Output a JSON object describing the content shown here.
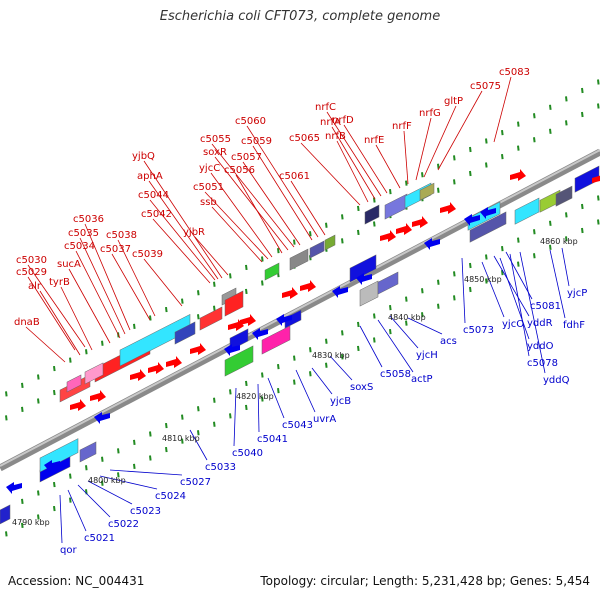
{
  "title": "Escherichia coli CFT073, complete genome",
  "footer": {
    "accession": "Accession: NC_004431",
    "summary": "Topology: circular; Length: 5,231,428 bp; Genes: 5,454"
  },
  "colors": {
    "forward_label": "#cc0000",
    "reverse_label": "#0000cc",
    "forward_gene": "#ff0000",
    "reverse_gene": "#0000ee",
    "backbone": "#999999",
    "tick": "#228b22"
  },
  "scale_labels": [
    "4790 kbp",
    "4800 kbp",
    "4810 kbp",
    "4820 kbp",
    "4830 kbp",
    "4840 kbp",
    "4850 kbp",
    "4860 kbp"
  ],
  "forward_genes": [
    {
      "name": "dnaB"
    },
    {
      "name": "alr"
    },
    {
      "name": "tyrB"
    },
    {
      "name": "c5029"
    },
    {
      "name": "c5030"
    },
    {
      "name": "sucA"
    },
    {
      "name": "c5034"
    },
    {
      "name": "c5035"
    },
    {
      "name": "c5036"
    },
    {
      "name": "c5037"
    },
    {
      "name": "c5038"
    },
    {
      "name": "c5039"
    },
    {
      "name": "c5042"
    },
    {
      "name": "c5044"
    },
    {
      "name": "aphA"
    },
    {
      "name": "yjbQ"
    },
    {
      "name": "yjbR"
    },
    {
      "name": "ssb"
    },
    {
      "name": "c5051"
    },
    {
      "name": "yjcC"
    },
    {
      "name": "c5056"
    },
    {
      "name": "soxR"
    },
    {
      "name": "c5055"
    },
    {
      "name": "c5057"
    },
    {
      "name": "c5059"
    },
    {
      "name": "c5060"
    },
    {
      "name": "c5061"
    },
    {
      "name": "c5065"
    },
    {
      "name": "nrfB"
    },
    {
      "name": "nrfA"
    },
    {
      "name": "nrfC"
    },
    {
      "name": "nrfD"
    },
    {
      "name": "nrfE"
    },
    {
      "name": "nrfF"
    },
    {
      "name": "nrfG"
    },
    {
      "name": "gltP"
    },
    {
      "name": "c5075"
    },
    {
      "name": "c5083"
    }
  ],
  "reverse_genes": [
    {
      "name": "qor"
    },
    {
      "name": "c5021"
    },
    {
      "name": "c5022"
    },
    {
      "name": "c5023"
    },
    {
      "name": "c5024"
    },
    {
      "name": "c5027"
    },
    {
      "name": "c5033"
    },
    {
      "name": "c5040"
    },
    {
      "name": "c5041"
    },
    {
      "name": "c5043"
    },
    {
      "name": "uvrA"
    },
    {
      "name": "yjcB"
    },
    {
      "name": "soxS"
    },
    {
      "name": "c5058"
    },
    {
      "name": "actP"
    },
    {
      "name": "yjcH"
    },
    {
      "name": "acs"
    },
    {
      "name": "c5073"
    },
    {
      "name": "yjcO"
    },
    {
      "name": "yddR"
    },
    {
      "name": "c5081"
    },
    {
      "name": "yddO"
    },
    {
      "name": "c5078"
    },
    {
      "name": "yddQ"
    },
    {
      "name": "fdhF"
    },
    {
      "name": "yjcP"
    }
  ]
}
